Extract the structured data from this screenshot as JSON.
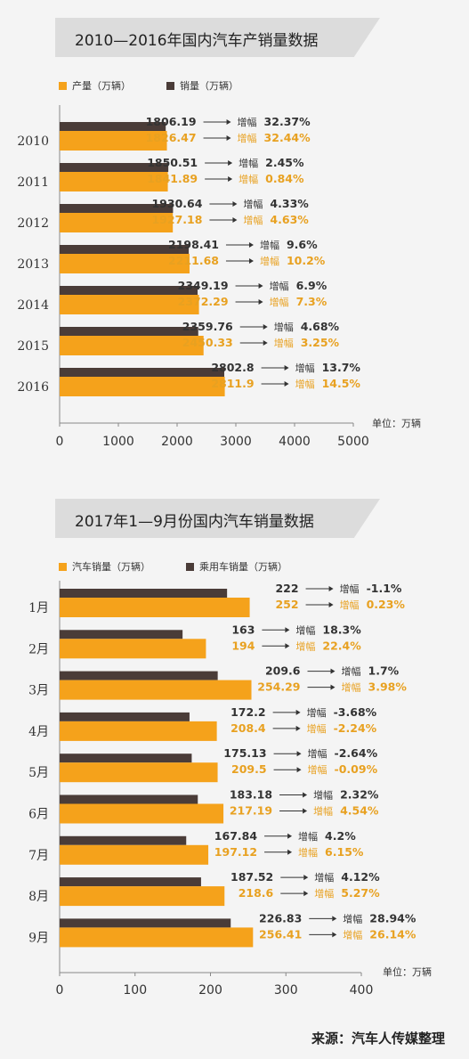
{
  "charts": [
    {
      "title": "2010—2016年国内汽车产销量数据",
      "legend": [
        "产量（万辆）",
        "销量（万辆）"
      ],
      "unit_label": "单位：万辆",
      "growth_word": "增幅"
    },
    {
      "title": "2017年1—9月份国内汽车销量数据",
      "legend": [
        "汽车销量（万辆）",
        "乘用车销量（万辆）"
      ],
      "unit_label": "单位：万辆",
      "growth_word": "增幅"
    }
  ],
  "source": "来源：汽车人传媒整理",
  "colors": {
    "orange": "#f5a21b",
    "dark": "#4a3c38",
    "orange_text": "#e8a121",
    "axis": "#888888"
  },
  "chart_data": [
    {
      "type": "bar",
      "orientation": "horizontal",
      "categories": [
        "2010",
        "2011",
        "2012",
        "2013",
        "2014",
        "2015",
        "2016"
      ],
      "series": [
        {
          "name": "销量（万辆）",
          "values": [
            1806.19,
            1850.51,
            1930.64,
            2198.41,
            2349.19,
            2359.76,
            2802.8
          ],
          "growth": [
            "32.37%",
            "2.45%",
            "4.33%",
            "9.6%",
            "6.9%",
            "4.68%",
            "13.7%"
          ]
        },
        {
          "name": "产量（万辆）",
          "values": [
            1826.47,
            1841.89,
            1927.18,
            2211.68,
            2372.29,
            2450.33,
            2811.9
          ],
          "growth": [
            "32.44%",
            "0.84%",
            "4.63%",
            "10.2%",
            "7.3%",
            "3.25%",
            "14.5%"
          ]
        }
      ],
      "xticks": [
        "0",
        "1000",
        "2000",
        "3000",
        "4000",
        "5000"
      ],
      "xlim": [
        0,
        5000
      ],
      "xlabel": "",
      "ylabel": ""
    },
    {
      "type": "bar",
      "orientation": "horizontal",
      "categories": [
        "1月",
        "2月",
        "3月",
        "4月",
        "5月",
        "6月",
        "7月",
        "8月",
        "9月"
      ],
      "series": [
        {
          "name": "乘用车销量（万辆）",
          "values": [
            222,
            163,
            209.6,
            172.2,
            175.13,
            183.18,
            167.84,
            187.52,
            226.83
          ],
          "growth": [
            "-1.1%",
            "18.3%",
            "1.7%",
            "-3.68%",
            "-2.64%",
            "2.32%",
            "4.2%",
            "4.12%",
            "28.94%"
          ]
        },
        {
          "name": "汽车销量（万辆）",
          "values": [
            252,
            194,
            254.29,
            208.4,
            209.5,
            217.19,
            197.12,
            218.6,
            256.41
          ],
          "growth": [
            "0.23%",
            "22.4%",
            "3.98%",
            "-2.24%",
            "-0.09%",
            "4.54%",
            "6.15%",
            "5.27%",
            "26.14%"
          ]
        }
      ],
      "xticks": [
        "0",
        "100",
        "200",
        "300",
        "400"
      ],
      "xlim": [
        0,
        400
      ],
      "xlabel": "",
      "ylabel": ""
    }
  ]
}
